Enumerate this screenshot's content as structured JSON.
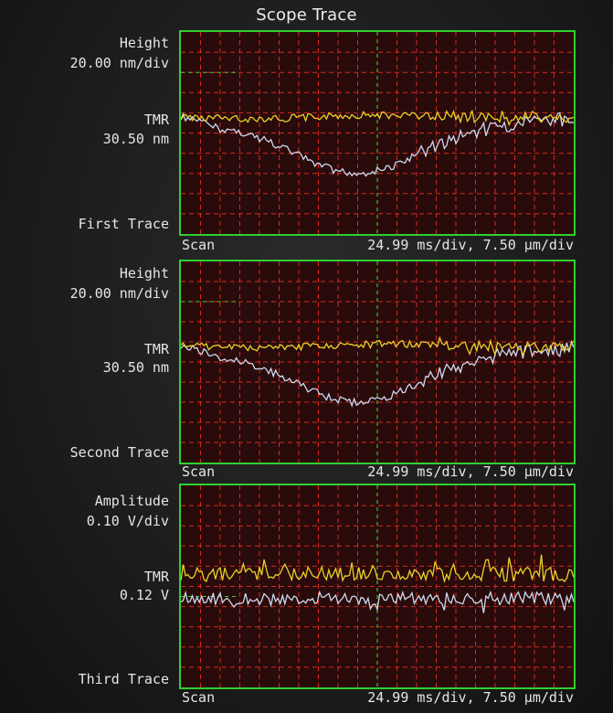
{
  "title": "Scope Trace",
  "colors": {
    "plot_bg": "#2a0b0b",
    "frame": "#2fd02f",
    "grid": "#d62a22",
    "center_line": "#38d038",
    "trace_a": "#e8d22a",
    "trace_b": "#cdd9ef"
  },
  "traces": [
    {
      "scale_name": "Height",
      "scale_value": "20.00 nm/div",
      "tmr_label": "TMR",
      "tmr_value": "30.50 nm",
      "trace_name": "First Trace",
      "scan_label": "Scan",
      "timebase": "24.99 ms/div, 7.50 µm/div"
    },
    {
      "scale_name": "Height",
      "scale_value": "20.00 nm/div",
      "tmr_label": "TMR",
      "tmr_value": "30.50 nm",
      "trace_name": "Second Trace",
      "scan_label": "Scan",
      "timebase": "24.99 ms/div, 7.50 µm/div"
    },
    {
      "scale_name": "Amplitude",
      "scale_value": "0.10 V/div",
      "tmr_label": "TMR",
      "tmr_value": "0.12 V",
      "trace_name": "Third Trace",
      "scan_label": "Scan",
      "timebase": "24.99 ms/div, 7.50 µm/div"
    }
  ]
}
